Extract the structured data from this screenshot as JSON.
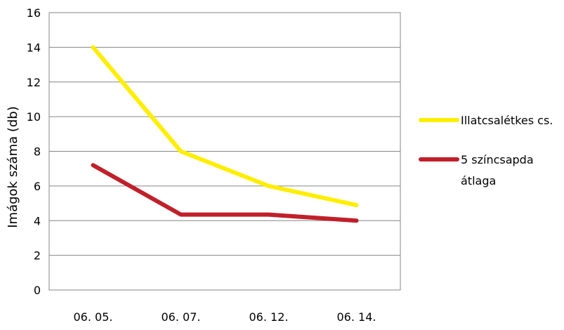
{
  "chart_data": {
    "type": "line",
    "title": "",
    "xlabel": "",
    "ylabel": "Imágok száma (db)",
    "categories": [
      "06. 05.",
      "06. 07.",
      "06. 12.",
      "06. 14."
    ],
    "ylim": [
      0,
      16
    ],
    "yticks": [
      "0",
      "2",
      "4",
      "6",
      "8",
      "10",
      "12",
      "14",
      "16"
    ],
    "grid": true,
    "legend_position": "right",
    "series": [
      {
        "name": "Illatcsalétkes cs.",
        "values": [
          14,
          8,
          6,
          4.9
        ],
        "color": "#ffee00"
      },
      {
        "name": "5 színcsapda átlaga",
        "name_lines": [
          "5 színcsapda",
          "átlaga"
        ],
        "values": [
          7.2,
          4.35,
          4.35,
          4.0
        ],
        "color": "#c0202a"
      }
    ]
  }
}
